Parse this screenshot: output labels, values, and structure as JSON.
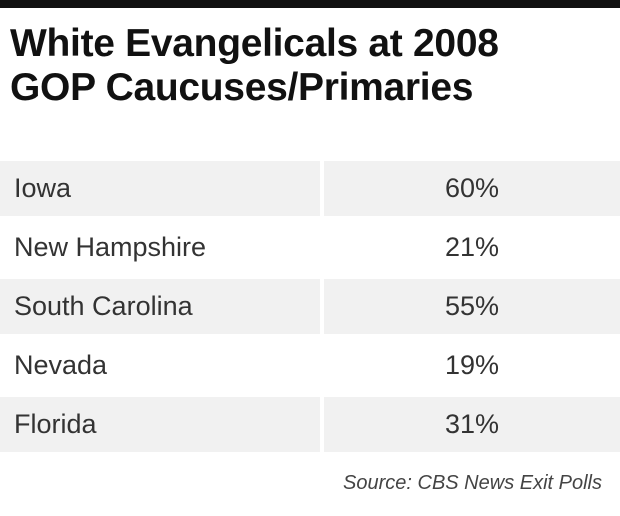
{
  "header": {
    "title_line1": "White Evangelicals at 2008",
    "title_line2": "GOP Caucuses/Primaries"
  },
  "chart_data": {
    "type": "table",
    "title": "White Evangelicals at 2008 GOP Caucuses/Primaries",
    "rows": [
      {
        "state": "Iowa",
        "value": "60%"
      },
      {
        "state": "New Hampshire",
        "value": "21%"
      },
      {
        "state": "South Carolina",
        "value": "55%"
      },
      {
        "state": "Nevada",
        "value": "19%"
      },
      {
        "state": "Florida",
        "value": "31%"
      }
    ]
  },
  "footer": {
    "source": "Source: CBS News Exit Polls"
  },
  "colors": {
    "row_shade": "#f1f1f1",
    "top_rule": "#111111"
  }
}
